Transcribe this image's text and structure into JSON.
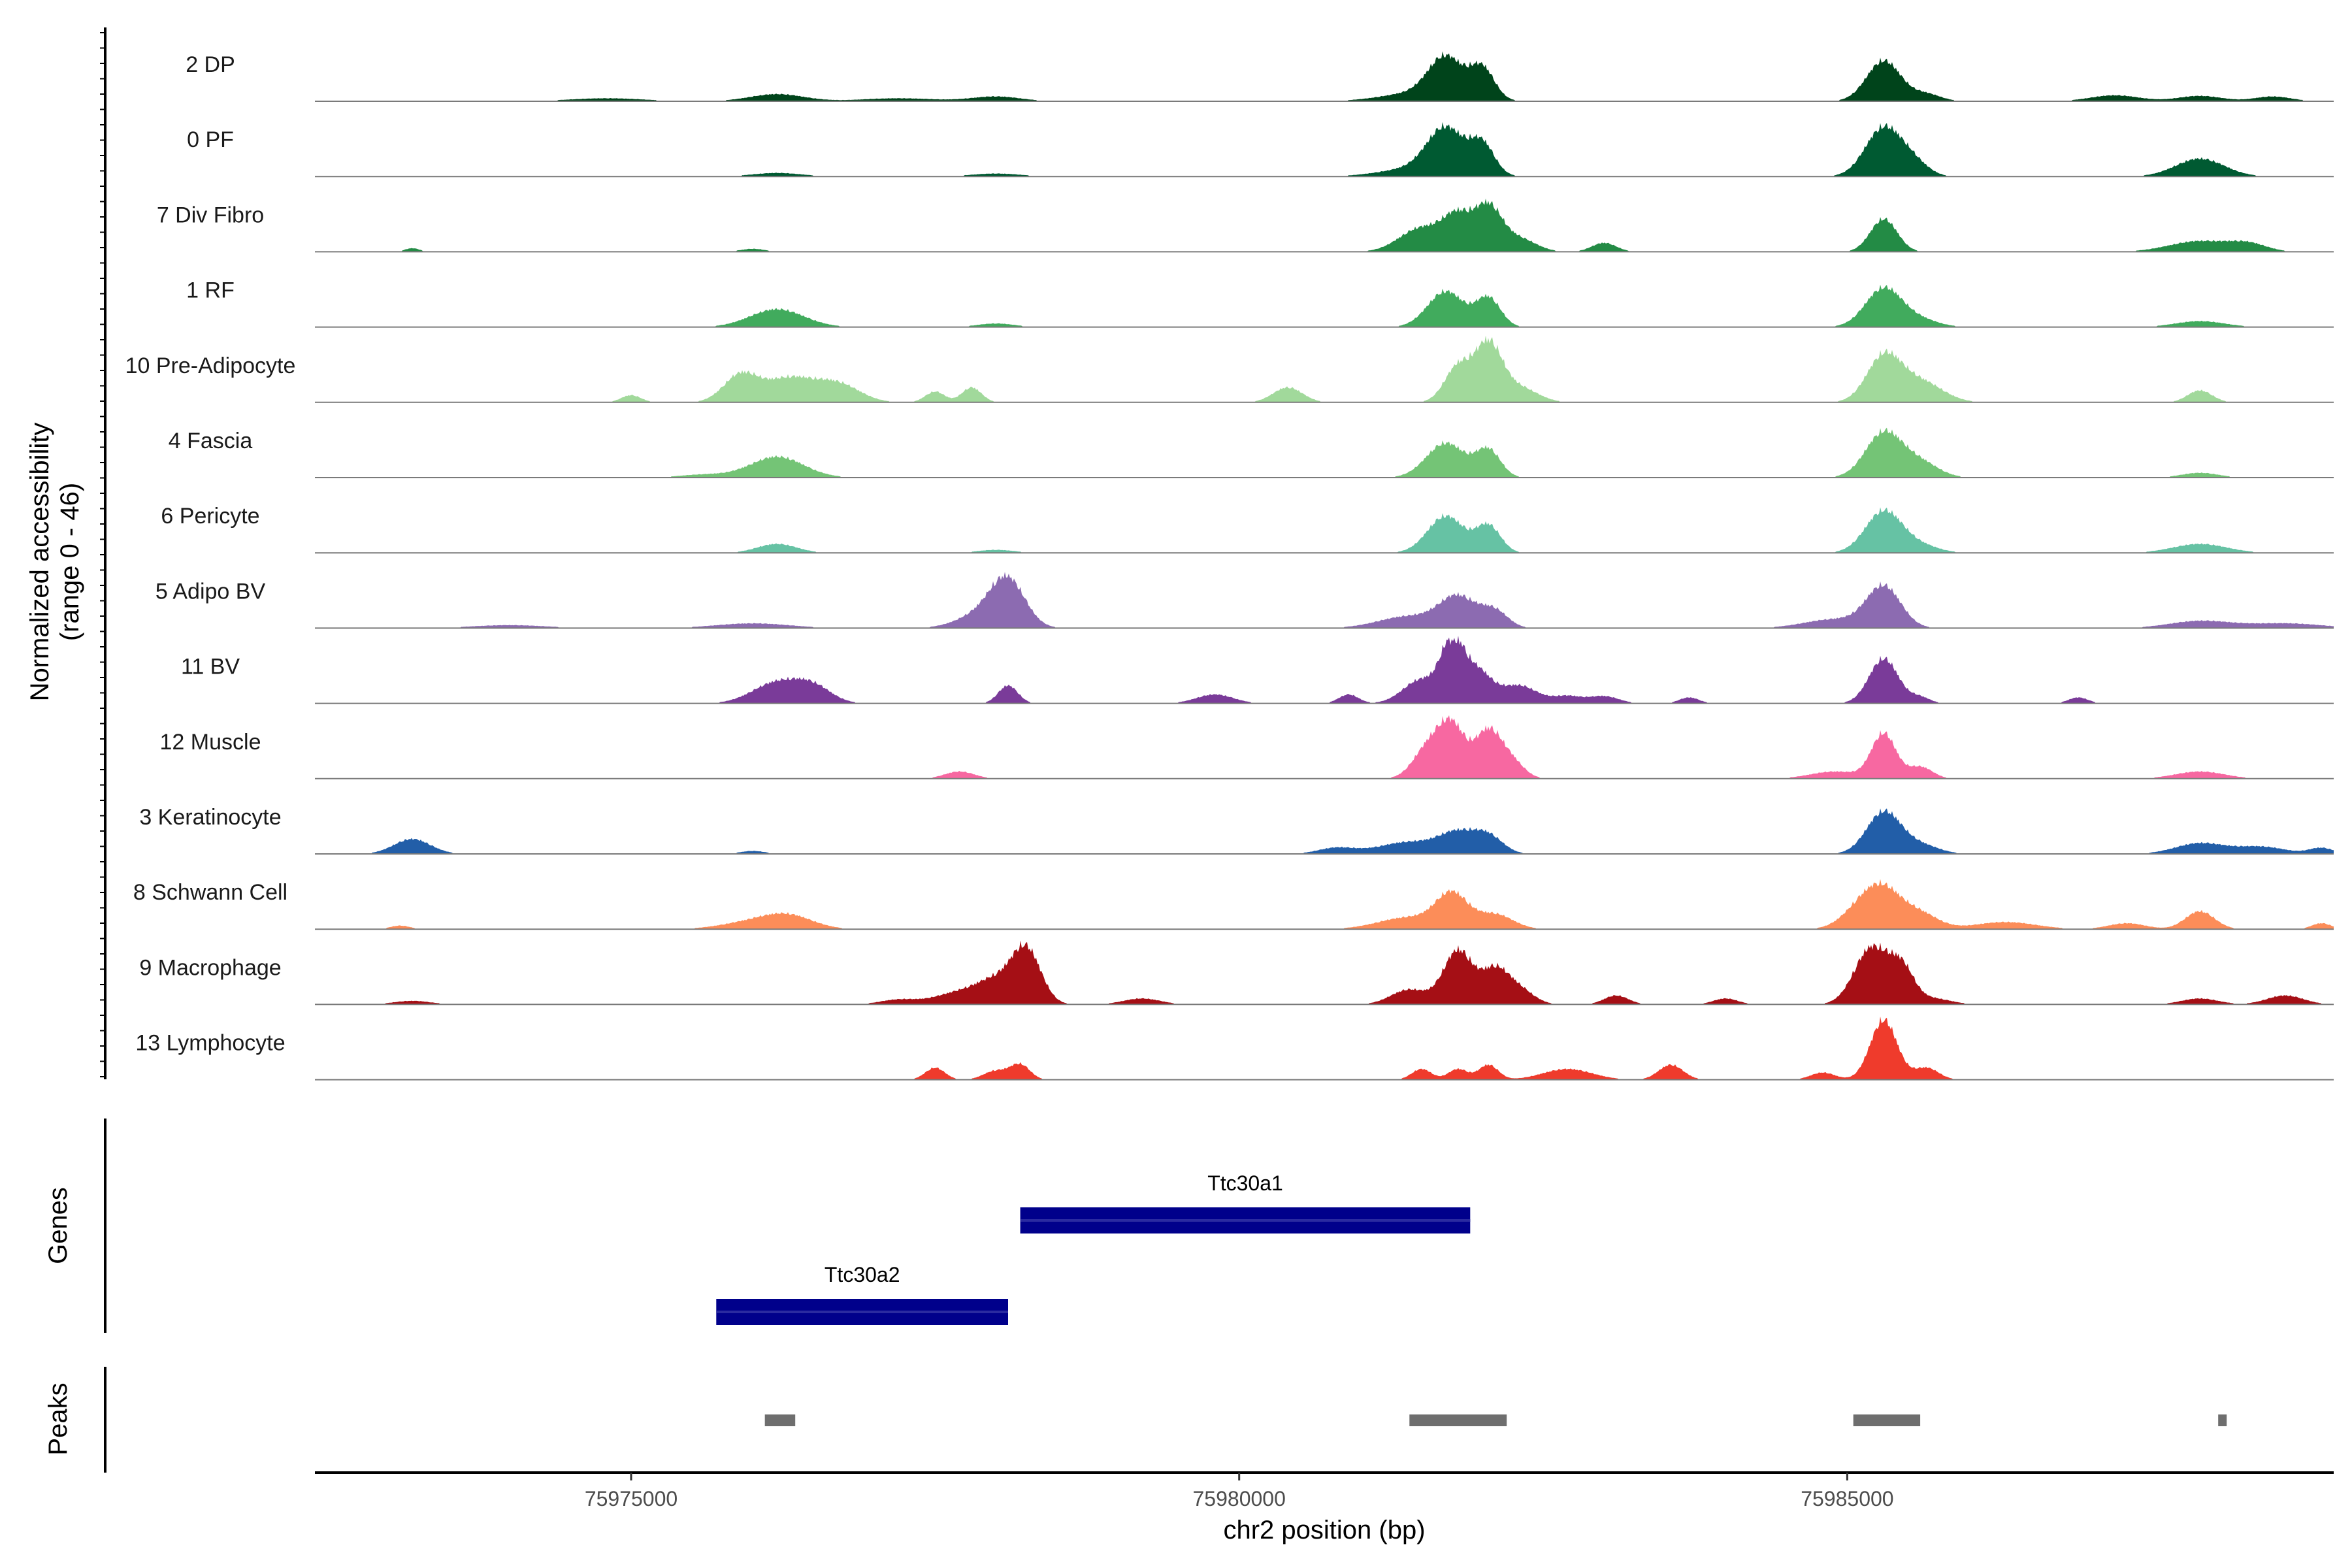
{
  "chart_data": {
    "type": "area",
    "title": "",
    "ylabel_line1": "Normalized accessibility",
    "ylabel_line2": "(range 0 - 46)",
    "y_range": [
      0,
      46
    ],
    "xlabel": "chr2 position (bp)",
    "xlim": [
      75972400,
      75989000
    ],
    "x_ticks": [
      75975000,
      75980000,
      75985000
    ],
    "x_tick_labels": [
      "75975000",
      "75980000",
      "75985000"
    ],
    "tracks": [
      {
        "label": "2 DP",
        "color": "#00441b",
        "peaks": [
          [
            75976200,
            0.12,
            220
          ],
          [
            75978000,
            0.08,
            200
          ],
          [
            75981700,
            0.65,
            140
          ],
          [
            75982000,
            0.52,
            100
          ],
          [
            75981500,
            0.15,
            300
          ],
          [
            75985300,
            0.68,
            140
          ],
          [
            75985650,
            0.12,
            120
          ],
          [
            75987200,
            0.1,
            200
          ],
          [
            75987900,
            0.09,
            180
          ],
          [
            75988500,
            0.08,
            150
          ],
          [
            75974800,
            0.05,
            300
          ],
          [
            75977200,
            0.05,
            300
          ]
        ]
      },
      {
        "label": "0 PF",
        "color": "#005a32",
        "peaks": [
          [
            75976200,
            0.06,
            200
          ],
          [
            75978000,
            0.05,
            200
          ],
          [
            75981700,
            0.72,
            150
          ],
          [
            75982000,
            0.5,
            100
          ],
          [
            75981500,
            0.15,
            300
          ],
          [
            75985300,
            0.82,
            150
          ],
          [
            75985550,
            0.2,
            120
          ],
          [
            75987900,
            0.3,
            200
          ]
        ]
      },
      {
        "label": "7 Div Fibro",
        "color": "#238b45",
        "peaks": [
          [
            75973200,
            0.06,
            60
          ],
          [
            75976000,
            0.05,
            100
          ],
          [
            75981500,
            0.4,
            180
          ],
          [
            75981800,
            0.55,
            120
          ],
          [
            75982050,
            0.72,
            110
          ],
          [
            75982300,
            0.22,
            140
          ],
          [
            75983000,
            0.15,
            100
          ],
          [
            75985300,
            0.55,
            110
          ],
          [
            75987900,
            0.18,
            250
          ],
          [
            75988300,
            0.12,
            150
          ]
        ]
      },
      {
        "label": "1 RF",
        "color": "#41ab5d",
        "peaks": [
          [
            75976200,
            0.3,
            220
          ],
          [
            75978000,
            0.06,
            150
          ],
          [
            75981700,
            0.6,
            150
          ],
          [
            75982050,
            0.48,
            100
          ],
          [
            75985300,
            0.65,
            150
          ],
          [
            75985600,
            0.12,
            150
          ],
          [
            75987900,
            0.1,
            200
          ]
        ]
      },
      {
        "label": "10 Pre-Adipocyte",
        "color": "#a1d99b",
        "peaks": [
          [
            75975900,
            0.45,
            140
          ],
          [
            75976300,
            0.4,
            200
          ],
          [
            75976700,
            0.3,
            180
          ],
          [
            75975000,
            0.12,
            80
          ],
          [
            75977500,
            0.18,
            80
          ],
          [
            75977800,
            0.25,
            80
          ],
          [
            75980400,
            0.25,
            120
          ],
          [
            75981800,
            0.6,
            110
          ],
          [
            75982050,
            0.95,
            110
          ],
          [
            75982300,
            0.25,
            150
          ],
          [
            75985300,
            0.75,
            140
          ],
          [
            75985600,
            0.35,
            180
          ],
          [
            75987900,
            0.2,
            100
          ]
        ]
      },
      {
        "label": "4 Fascia",
        "color": "#74c476",
        "peaks": [
          [
            75976200,
            0.35,
            220
          ],
          [
            75975600,
            0.05,
            200
          ],
          [
            75981700,
            0.58,
            160
          ],
          [
            75982050,
            0.45,
            100
          ],
          [
            75985300,
            0.75,
            150
          ],
          [
            75985600,
            0.25,
            150
          ],
          [
            75987900,
            0.08,
            150
          ]
        ]
      },
      {
        "label": "6 Pericyte",
        "color": "#66c2a4",
        "peaks": [
          [
            75976200,
            0.15,
            160
          ],
          [
            75978000,
            0.05,
            150
          ],
          [
            75981700,
            0.62,
            150
          ],
          [
            75982050,
            0.45,
            100
          ],
          [
            75985300,
            0.7,
            150
          ],
          [
            75985600,
            0.12,
            150
          ],
          [
            75987900,
            0.15,
            220
          ]
        ]
      },
      {
        "label": "5 Adipo BV",
        "color": "#8c6bb1",
        "peaks": [
          [
            75977900,
            0.25,
            200
          ],
          [
            75978100,
            0.72,
            140
          ],
          [
            75976000,
            0.08,
            300
          ],
          [
            75981400,
            0.2,
            250
          ],
          [
            75981800,
            0.5,
            150
          ],
          [
            75982100,
            0.28,
            110
          ],
          [
            75984900,
            0.15,
            250
          ],
          [
            75985300,
            0.68,
            140
          ],
          [
            75987900,
            0.12,
            250
          ],
          [
            75988600,
            0.08,
            300
          ],
          [
            75974000,
            0.05,
            300
          ]
        ]
      },
      {
        "label": "11 BV",
        "color": "#7a3b99",
        "peaks": [
          [
            75976200,
            0.35,
            200
          ],
          [
            75976500,
            0.25,
            150
          ],
          [
            75978100,
            0.3,
            80
          ],
          [
            75979800,
            0.15,
            150
          ],
          [
            75980900,
            0.15,
            80
          ],
          [
            75981500,
            0.4,
            150
          ],
          [
            75981750,
            0.95,
            90
          ],
          [
            75981950,
            0.55,
            120
          ],
          [
            75982300,
            0.3,
            150
          ],
          [
            75982700,
            0.12,
            120
          ],
          [
            75983000,
            0.12,
            120
          ],
          [
            75983700,
            0.1,
            80
          ],
          [
            75985300,
            0.75,
            120
          ],
          [
            75985600,
            0.1,
            80
          ],
          [
            75986900,
            0.1,
            80
          ]
        ]
      },
      {
        "label": "12 Muscle",
        "color": "#f768a1",
        "peaks": [
          [
            75977700,
            0.12,
            120
          ],
          [
            75981550,
            0.5,
            120
          ],
          [
            75981750,
            0.85,
            110
          ],
          [
            75982050,
            0.8,
            110
          ],
          [
            75982250,
            0.25,
            100
          ],
          [
            75984900,
            0.12,
            200
          ],
          [
            75985300,
            0.75,
            100
          ],
          [
            75985600,
            0.2,
            100
          ],
          [
            75987900,
            0.12,
            200
          ]
        ]
      },
      {
        "label": "3 Keratinocyte",
        "color": "#225ea8",
        "peaks": [
          [
            75973200,
            0.25,
            150
          ],
          [
            75976000,
            0.05,
            100
          ],
          [
            75980800,
            0.1,
            150
          ],
          [
            75981400,
            0.2,
            250
          ],
          [
            75981800,
            0.32,
            150
          ],
          [
            75982050,
            0.28,
            120
          ],
          [
            75985300,
            0.7,
            140
          ],
          [
            75985600,
            0.15,
            150
          ],
          [
            75987900,
            0.18,
            200
          ],
          [
            75988400,
            0.12,
            200
          ],
          [
            75988900,
            0.1,
            100
          ]
        ]
      },
      {
        "label": "8 Schwann Cell",
        "color": "#fc8d59",
        "peaks": [
          [
            75973100,
            0.06,
            80
          ],
          [
            75976000,
            0.12,
            250
          ],
          [
            75976300,
            0.2,
            200
          ],
          [
            75981400,
            0.2,
            250
          ],
          [
            75981750,
            0.55,
            130
          ],
          [
            75982100,
            0.25,
            150
          ],
          [
            75985100,
            0.3,
            150
          ],
          [
            75985300,
            0.6,
            150
          ],
          [
            75985600,
            0.25,
            150
          ],
          [
            75986300,
            0.12,
            250
          ],
          [
            75987300,
            0.1,
            150
          ],
          [
            75987900,
            0.3,
            120
          ],
          [
            75988900,
            0.1,
            80
          ]
        ]
      },
      {
        "label": "9 Macrophage",
        "color": "#a50f15",
        "peaks": [
          [
            75973200,
            0.06,
            150
          ],
          [
            75977200,
            0.08,
            150
          ],
          [
            75977700,
            0.2,
            200
          ],
          [
            75978000,
            0.35,
            150
          ],
          [
            75978250,
            0.9,
            120
          ],
          [
            75979200,
            0.1,
            150
          ],
          [
            75981400,
            0.25,
            150
          ],
          [
            75981800,
            0.9,
            120
          ],
          [
            75982100,
            0.55,
            110
          ],
          [
            75982300,
            0.25,
            120
          ],
          [
            75983100,
            0.15,
            100
          ],
          [
            75984000,
            0.1,
            100
          ],
          [
            75985200,
            0.95,
            140
          ],
          [
            75985450,
            0.55,
            100
          ],
          [
            75985700,
            0.1,
            150
          ],
          [
            75987900,
            0.1,
            150
          ],
          [
            75988600,
            0.15,
            150
          ]
        ]
      },
      {
        "label": "13 Lymphocyte",
        "color": "#ef3b2c",
        "peaks": [
          [
            75977500,
            0.2,
            80
          ],
          [
            75978000,
            0.15,
            100
          ],
          [
            75978200,
            0.25,
            80
          ],
          [
            75981500,
            0.18,
            80
          ],
          [
            75981800,
            0.18,
            80
          ],
          [
            75982050,
            0.25,
            80
          ],
          [
            75982700,
            0.18,
            200
          ],
          [
            75983550,
            0.25,
            100
          ],
          [
            75984800,
            0.12,
            100
          ],
          [
            75985300,
            1.0,
            110
          ],
          [
            75985650,
            0.2,
            100
          ]
        ]
      }
    ],
    "genes_label": "Genes",
    "genes": [
      {
        "name": "Ttc30a1",
        "start": 75978200,
        "end": 75981900
      },
      {
        "name": "Ttc30a2",
        "start": 75975700,
        "end": 75978100
      }
    ],
    "peaks_label": "Peaks",
    "peak_regions": [
      [
        75976100,
        75976350
      ],
      [
        75981400,
        75982200
      ],
      [
        75985050,
        75985600
      ],
      [
        75988050,
        75988120
      ]
    ],
    "colors": {
      "baseline": "#7a7a7a",
      "gene": "#00008b",
      "peak": "#6e6e6e",
      "axis": "#000000"
    }
  }
}
